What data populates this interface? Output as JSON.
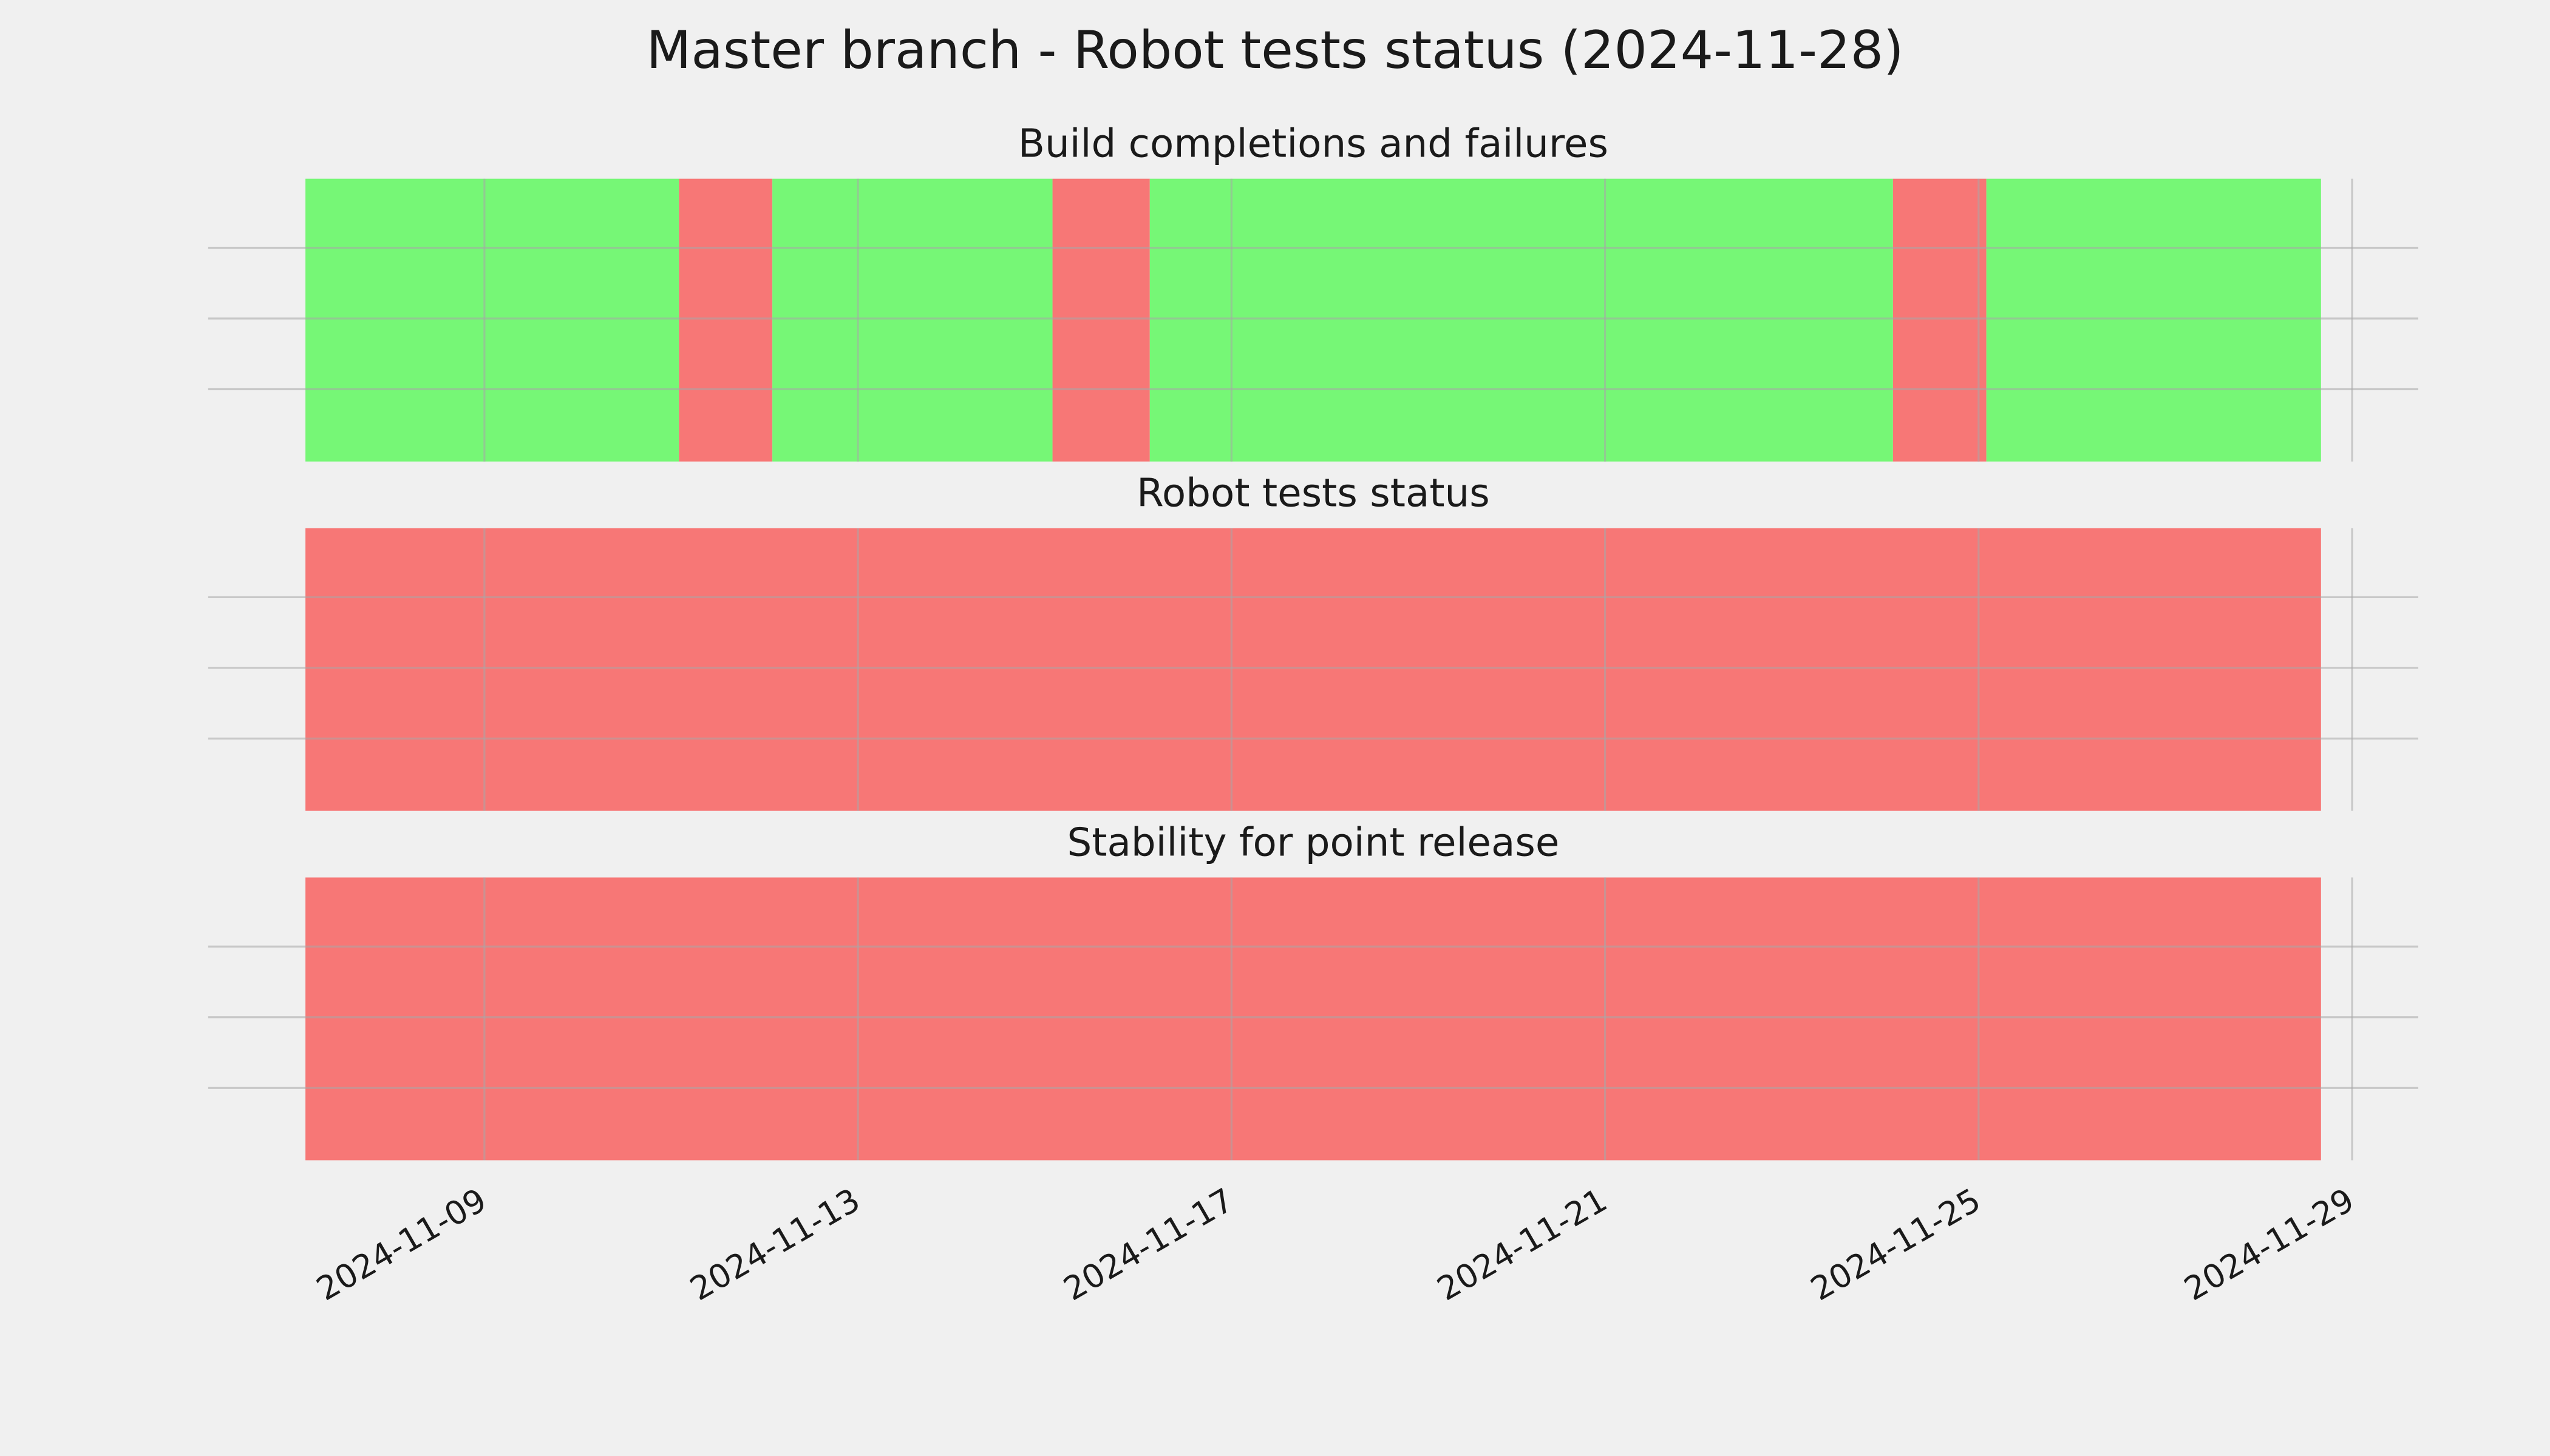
{
  "title": "Master branch - Robot tests status (2024-11-28)",
  "chart_data": [
    {
      "type": "span",
      "title": "Build completions and failures",
      "xlim": [
        "2024-11-06T01:00",
        "2024-11-29T17:00"
      ],
      "xticks": [
        "2024-11-09",
        "2024-11-13",
        "2024-11-17",
        "2024-11-21",
        "2024-11-25",
        "2024-11-29"
      ],
      "grid": true,
      "spans": [
        {
          "start": "2024-11-07T02:00",
          "end": "2024-11-11T02:00",
          "color": "#76f776"
        },
        {
          "start": "2024-11-11T02:00",
          "end": "2024-11-12T02:00",
          "color": "#f77776"
        },
        {
          "start": "2024-11-12T02:00",
          "end": "2024-11-15T02:00",
          "color": "#76f776"
        },
        {
          "start": "2024-11-15T02:00",
          "end": "2024-11-16T03:00",
          "color": "#f77776"
        },
        {
          "start": "2024-11-16T03:00",
          "end": "2024-11-24T02:00",
          "color": "#76f776"
        },
        {
          "start": "2024-11-24T02:00",
          "end": "2024-11-25T02:00",
          "color": "#f77776"
        },
        {
          "start": "2024-11-25T02:00",
          "end": "2024-11-28T16:00",
          "color": "#76f776"
        }
      ]
    },
    {
      "type": "span",
      "title": "Robot tests status",
      "xlim": [
        "2024-11-06T01:00",
        "2024-11-29T17:00"
      ],
      "xticks": [
        "2024-11-09",
        "2024-11-13",
        "2024-11-17",
        "2024-11-21",
        "2024-11-25",
        "2024-11-29"
      ],
      "grid": true,
      "spans": [
        {
          "start": "2024-11-07T02:00",
          "end": "2024-11-28T16:00",
          "color": "#f77776"
        }
      ]
    },
    {
      "type": "span",
      "title": "Stability for point release",
      "xlim": [
        "2024-11-06T01:00",
        "2024-11-29T17:00"
      ],
      "xticks": [
        "2024-11-09",
        "2024-11-13",
        "2024-11-17",
        "2024-11-21",
        "2024-11-25",
        "2024-11-29"
      ],
      "grid": true,
      "spans": [
        {
          "start": "2024-11-07T02:00",
          "end": "2024-11-28T16:00",
          "color": "#f77776"
        }
      ]
    }
  ]
}
